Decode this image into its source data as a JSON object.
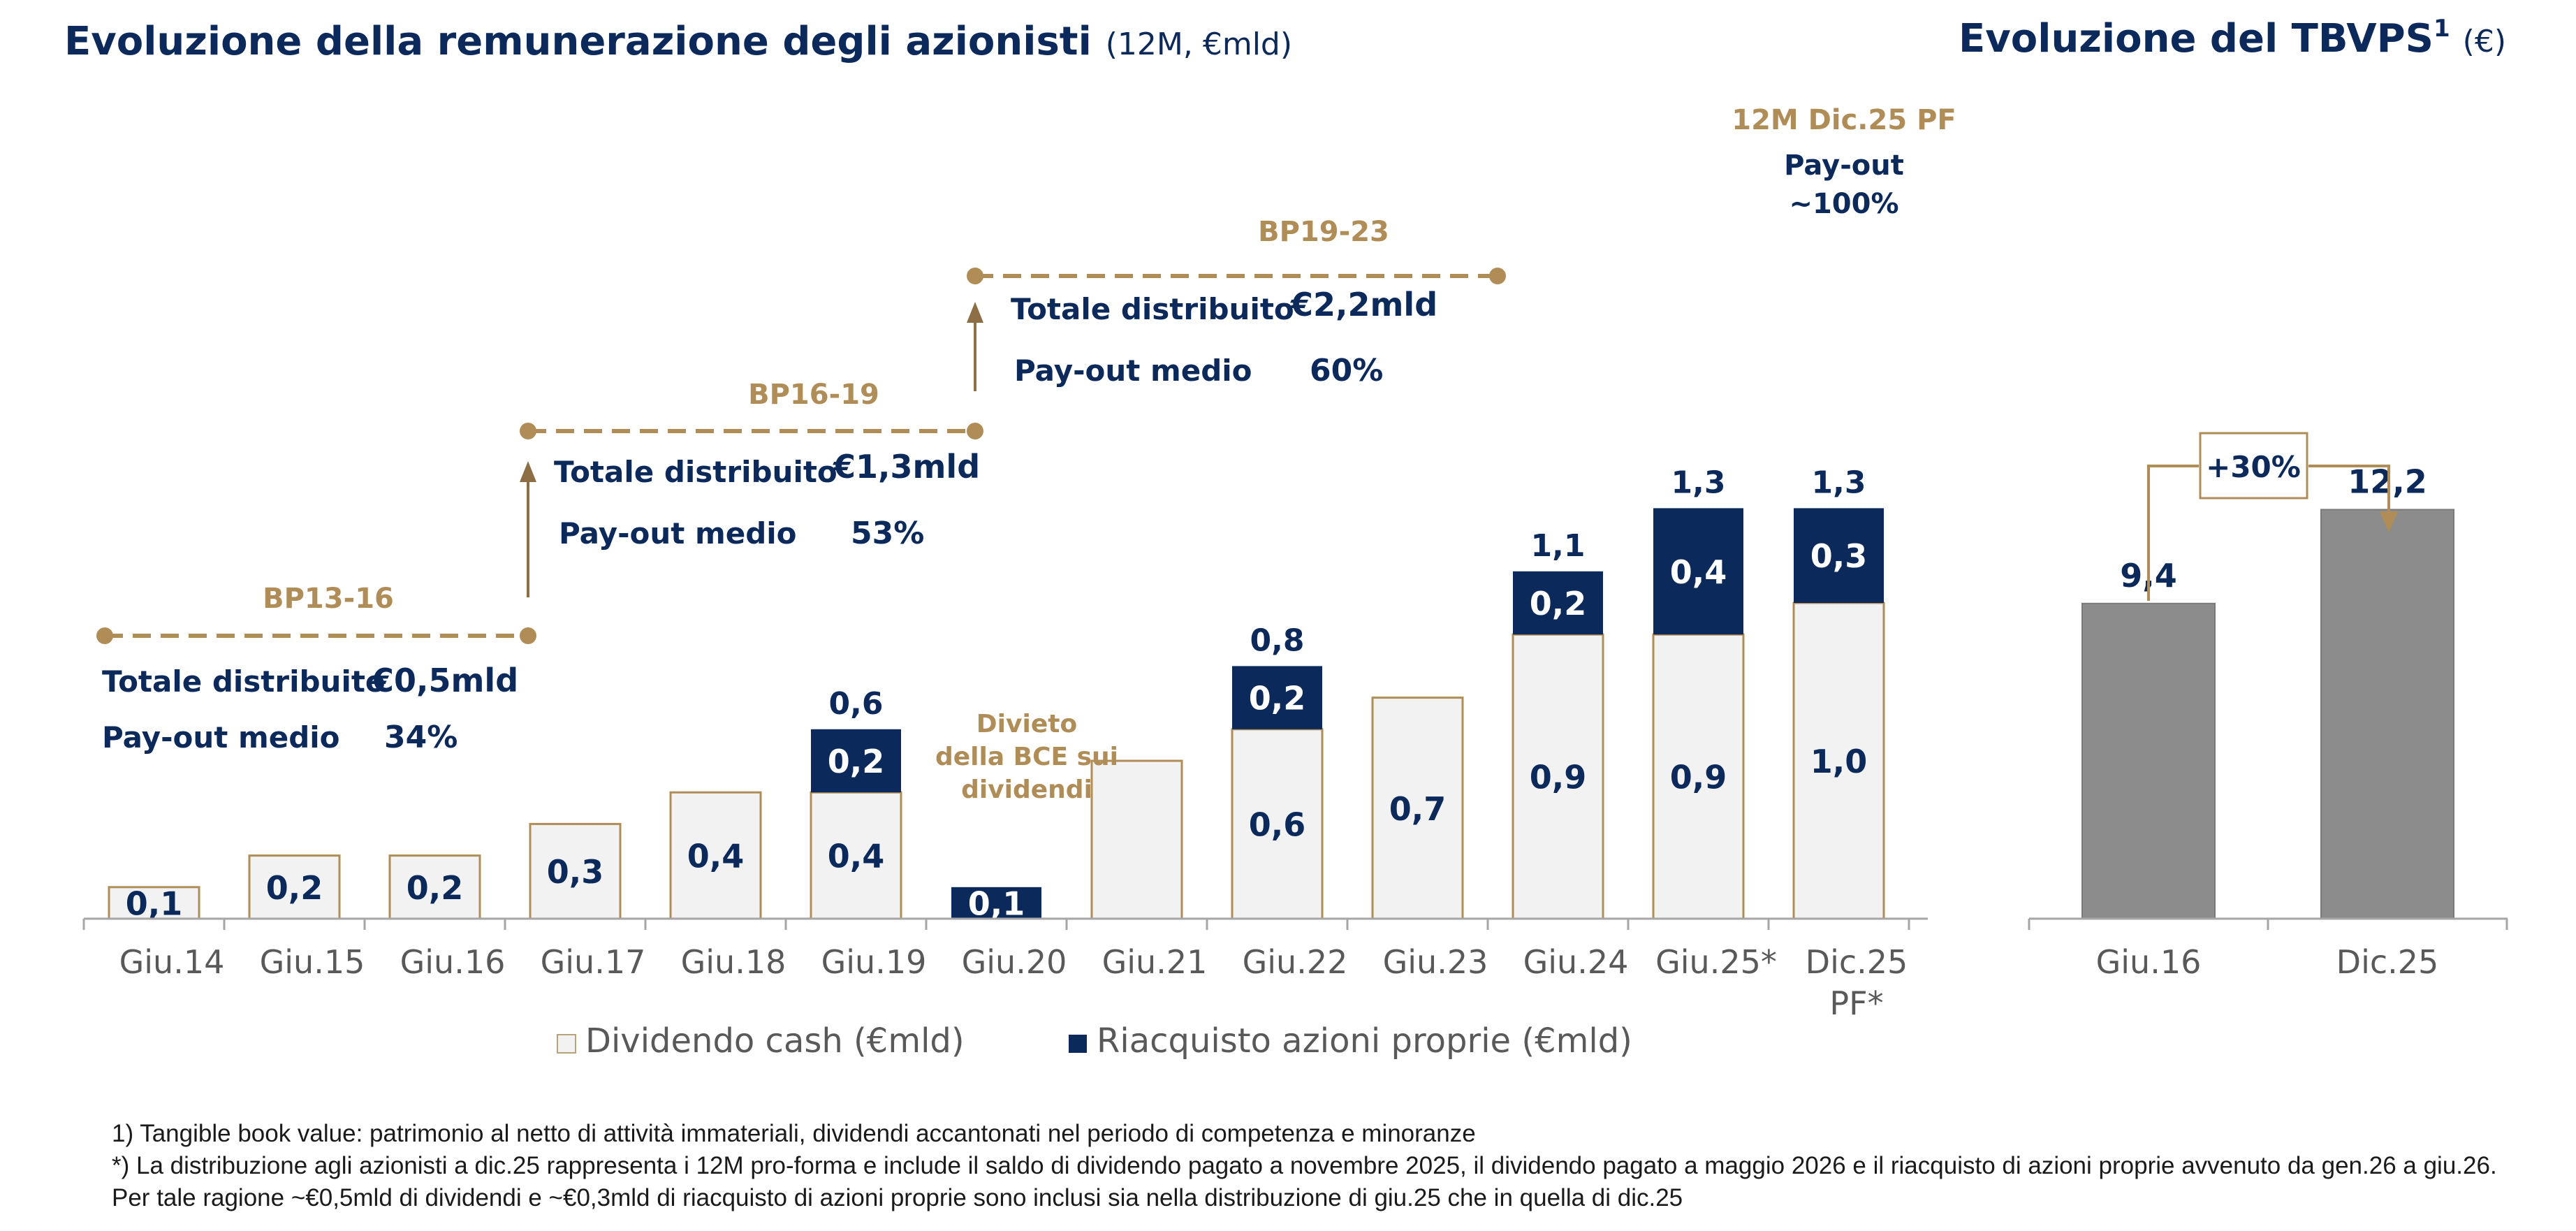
{
  "left_chart": {
    "title": "Evoluzione della remunerazione degli azionisti",
    "title_unit": "(12M, €mld)",
    "chart_data": {
      "type": "bar",
      "stacked": true,
      "categories": [
        "Giu.14",
        "Giu.15",
        "Giu.16",
        "Giu.17",
        "Giu.18",
        "Giu.19",
        "Giu.20",
        "Giu.21",
        "Giu.22",
        "Giu.23",
        "Giu.24",
        "Giu.25*",
        "Dic.25 PF*"
      ],
      "series": [
        {
          "name": "Dividendo cash (€mld)",
          "color": "#f2f2f2",
          "values": [
            0.1,
            0.2,
            0.2,
            0.3,
            0.4,
            0.4,
            0,
            0.5,
            0.6,
            0.7,
            0.9,
            0.9,
            1.0
          ]
        },
        {
          "name": "Riacquisto azioni proprie (€mld)",
          "color": "#0b2a5b",
          "values": [
            0,
            0,
            0,
            0,
            0,
            0.2,
            0.1,
            0,
            0.2,
            0,
            0.2,
            0.4,
            0.3
          ]
        }
      ],
      "segment_labels": [
        [
          "0,1",
          ""
        ],
        [
          "0,2",
          ""
        ],
        [
          "0,2",
          ""
        ],
        [
          "0,3",
          ""
        ],
        [
          "0,4",
          ""
        ],
        [
          "0,4",
          "0,2"
        ],
        [
          "",
          "0,1"
        ],
        [
          "",
          ""
        ],
        [
          "0,6",
          "0,2"
        ],
        [
          "0,7",
          ""
        ],
        [
          "0,9",
          "0,2"
        ],
        [
          "0,9",
          "0,4"
        ],
        [
          "1,0",
          "0,3"
        ]
      ],
      "total_labels": [
        "",
        "",
        "",
        "",
        "",
        "0,6",
        "",
        "",
        "0,8",
        "",
        "1,1",
        "1,3",
        "1,3"
      ],
      "legend_position": "bottom",
      "grid": false
    },
    "axis_labels": {
      "tick_0": "Giu.14",
      "tick_1": "Giu.15",
      "tick_2": "Giu.16",
      "tick_3": "Giu.17",
      "tick_4": "Giu.18",
      "tick_5": "Giu.19",
      "tick_6": "Giu.20",
      "tick_7": "Giu.21",
      "tick_8": "Giu.22",
      "tick_9": "Giu.23",
      "tick_10": "Giu.24",
      "tick_11": "Giu.25*",
      "tick_12_line1": "Dic.25",
      "tick_12_line2": "PF*"
    },
    "plans": [
      {
        "name": "BP13-16",
        "total_label": "Totale distribuito",
        "total_value": "€0,5mld",
        "payout_label": "Pay-out medio",
        "payout_value": "34%"
      },
      {
        "name": "BP16-19",
        "total_label": "Totale distribuito",
        "total_value": "€1,3mld",
        "payout_label": "Pay-out medio",
        "payout_value": "53%"
      },
      {
        "name": "BP19-23",
        "total_label": "Totale distribuito",
        "total_value": "€2,2mld",
        "payout_label": "Pay-out medio",
        "payout_value": "60%"
      }
    ],
    "bce_note": {
      "line1": "Divieto",
      "line2": "della BCE sui",
      "line3": "dividendi"
    },
    "pf_note": {
      "line1": "12M Dic.25 PF",
      "line2": "Pay-out",
      "line3": "~100%"
    },
    "legend": {
      "cash": "Dividendo cash (€mld)",
      "buyback": "Riacquisto azioni proprie (€mld)"
    }
  },
  "right_chart": {
    "title": "Evoluzione del TBVPS",
    "title_sup": "1",
    "title_unit": "(€)",
    "chart_data": {
      "type": "bar",
      "categories": [
        "Giu.16",
        "Dic.25"
      ],
      "values": [
        9.4,
        12.2
      ],
      "value_labels": [
        "9,4",
        "12,2"
      ],
      "color": "#8c8c8c",
      "grid": false
    },
    "growth_label": "+30%"
  },
  "colors": {
    "navy": "#0b2a5b",
    "gold": "#b08d57",
    "gray_bar": "#8c8c8c",
    "cash_fill": "#f2f2f2",
    "axis": "#a6a6a6"
  },
  "footnotes": {
    "note1": "1)  Tangible book value: patrimonio al netto di attività immateriali, dividendi accantonati nel periodo di competenza e minoranze",
    "note2": "*)  La distribuzione agli azionisti a dic.25 rappresenta i 12M pro-forma e include il saldo di dividendo pagato a novembre 2025, il dividendo pagato a maggio 2026 e il riacquisto di azioni proprie avvenuto da gen.26 a giu.26. Per tale ragione ~€0,5mld di dividendi e ~€0,3mld di riacquisto di azioni proprie sono inclusi sia nella distribuzione di giu.25 che in quella di dic.25"
  }
}
